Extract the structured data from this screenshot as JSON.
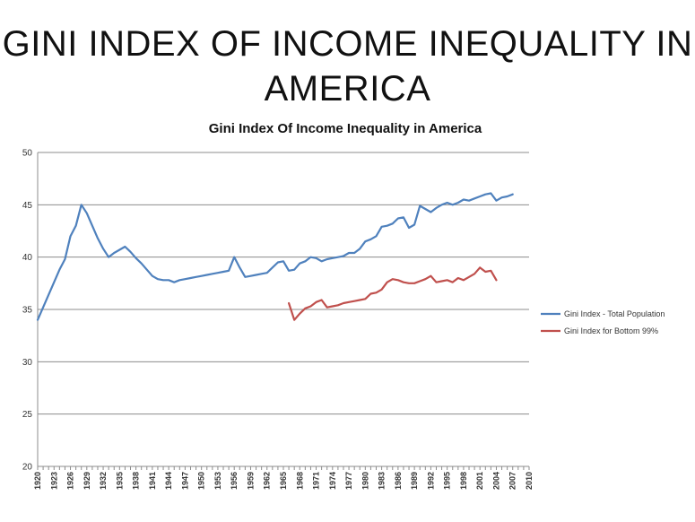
{
  "slide": {
    "title_line1": "GINI INDEX OF INCOME INEQUALITY IN",
    "title_line2": "AMERICA"
  },
  "chart_data": {
    "type": "line",
    "title": "Gini Index Of Income Inequality in America",
    "xlabel": "",
    "ylabel": "",
    "ylim": [
      20,
      50
    ],
    "xlim": [
      1920,
      2010
    ],
    "yticks": [
      20,
      25,
      30,
      35,
      40,
      45,
      50
    ],
    "xticks": [
      1920,
      1923,
      1926,
      1929,
      1932,
      1935,
      1938,
      1941,
      1944,
      1947,
      1950,
      1953,
      1956,
      1959,
      1962,
      1965,
      1968,
      1971,
      1974,
      1977,
      1980,
      1983,
      1986,
      1989,
      1992,
      1995,
      1998,
      2001,
      2004,
      2007,
      2010
    ],
    "grid": "horizontal",
    "legend_position": "right",
    "series": [
      {
        "name": "Gini Index - Total Population",
        "color": "#4f81bd",
        "points": [
          [
            1920,
            34.0
          ],
          [
            1921,
            35.2
          ],
          [
            1922,
            36.4
          ],
          [
            1923,
            37.6
          ],
          [
            1924,
            38.8
          ],
          [
            1925,
            39.8
          ],
          [
            1926,
            42.0
          ],
          [
            1927,
            43.0
          ],
          [
            1928,
            45.0
          ],
          [
            1929,
            44.2
          ],
          [
            1930,
            43.0
          ],
          [
            1931,
            41.8
          ],
          [
            1932,
            40.8
          ],
          [
            1933,
            40.0
          ],
          [
            1934,
            40.4
          ],
          [
            1935,
            40.7
          ],
          [
            1936,
            41.0
          ],
          [
            1937,
            40.5
          ],
          [
            1938,
            39.9
          ],
          [
            1939,
            39.4
          ],
          [
            1940,
            38.8
          ],
          [
            1941,
            38.2
          ],
          [
            1942,
            37.9
          ],
          [
            1943,
            37.8
          ],
          [
            1944,
            37.8
          ],
          [
            1945,
            37.6
          ],
          [
            1946,
            37.8
          ],
          [
            1947,
            37.9
          ],
          [
            1948,
            38.0
          ],
          [
            1949,
            38.1
          ],
          [
            1950,
            38.2
          ],
          [
            1951,
            38.3
          ],
          [
            1952,
            38.4
          ],
          [
            1953,
            38.5
          ],
          [
            1954,
            38.6
          ],
          [
            1955,
            38.7
          ],
          [
            1956,
            40.0
          ],
          [
            1957,
            39.0
          ],
          [
            1958,
            38.1
          ],
          [
            1959,
            38.2
          ],
          [
            1960,
            38.3
          ],
          [
            1961,
            38.4
          ],
          [
            1962,
            38.5
          ],
          [
            1963,
            39.0
          ],
          [
            1964,
            39.5
          ],
          [
            1965,
            39.6
          ],
          [
            1966,
            38.7
          ],
          [
            1967,
            38.8
          ],
          [
            1968,
            39.4
          ],
          [
            1969,
            39.6
          ],
          [
            1970,
            40.0
          ],
          [
            1971,
            39.9
          ],
          [
            1972,
            39.6
          ],
          [
            1973,
            39.8
          ],
          [
            1974,
            39.9
          ],
          [
            1975,
            40.0
          ],
          [
            1976,
            40.1
          ],
          [
            1977,
            40.4
          ],
          [
            1978,
            40.4
          ],
          [
            1979,
            40.8
          ],
          [
            1980,
            41.5
          ],
          [
            1981,
            41.7
          ],
          [
            1982,
            42.0
          ],
          [
            1983,
            42.9
          ],
          [
            1984,
            43.0
          ],
          [
            1985,
            43.2
          ],
          [
            1986,
            43.7
          ],
          [
            1987,
            43.8
          ],
          [
            1988,
            42.8
          ],
          [
            1989,
            43.1
          ],
          [
            1990,
            44.9
          ],
          [
            1991,
            44.6
          ],
          [
            1992,
            44.3
          ],
          [
            1993,
            44.7
          ],
          [
            1994,
            45.0
          ],
          [
            1995,
            45.2
          ],
          [
            1996,
            45.0
          ],
          [
            1997,
            45.2
          ],
          [
            1998,
            45.5
          ],
          [
            1999,
            45.4
          ],
          [
            2000,
            45.6
          ],
          [
            2001,
            45.8
          ],
          [
            2002,
            46.0
          ],
          [
            2003,
            46.1
          ],
          [
            2004,
            45.4
          ],
          [
            2005,
            45.7
          ],
          [
            2006,
            45.8
          ],
          [
            2007,
            46.0
          ]
        ]
      },
      {
        "name": "Gini Index for Bottom 99%",
        "color": "#c0504d",
        "points": [
          [
            1966,
            35.6
          ],
          [
            1967,
            34.0
          ],
          [
            1968,
            34.6
          ],
          [
            1969,
            35.1
          ],
          [
            1970,
            35.3
          ],
          [
            1971,
            35.7
          ],
          [
            1972,
            35.9
          ],
          [
            1973,
            35.2
          ],
          [
            1974,
            35.3
          ],
          [
            1975,
            35.4
          ],
          [
            1976,
            35.6
          ],
          [
            1977,
            35.7
          ],
          [
            1978,
            35.8
          ],
          [
            1979,
            35.9
          ],
          [
            1980,
            36.0
          ],
          [
            1981,
            36.5
          ],
          [
            1982,
            36.6
          ],
          [
            1983,
            36.9
          ],
          [
            1984,
            37.6
          ],
          [
            1985,
            37.9
          ],
          [
            1986,
            37.8
          ],
          [
            1987,
            37.6
          ],
          [
            1988,
            37.5
          ],
          [
            1989,
            37.5
          ],
          [
            1990,
            37.7
          ],
          [
            1991,
            37.9
          ],
          [
            1992,
            38.2
          ],
          [
            1993,
            37.6
          ],
          [
            1994,
            37.7
          ],
          [
            1995,
            37.8
          ],
          [
            1996,
            37.6
          ],
          [
            1997,
            38.0
          ],
          [
            1998,
            37.8
          ],
          [
            1999,
            38.1
          ],
          [
            2000,
            38.4
          ],
          [
            2001,
            39.0
          ],
          [
            2002,
            38.6
          ],
          [
            2003,
            38.7
          ],
          [
            2004,
            37.8
          ]
        ]
      }
    ]
  }
}
